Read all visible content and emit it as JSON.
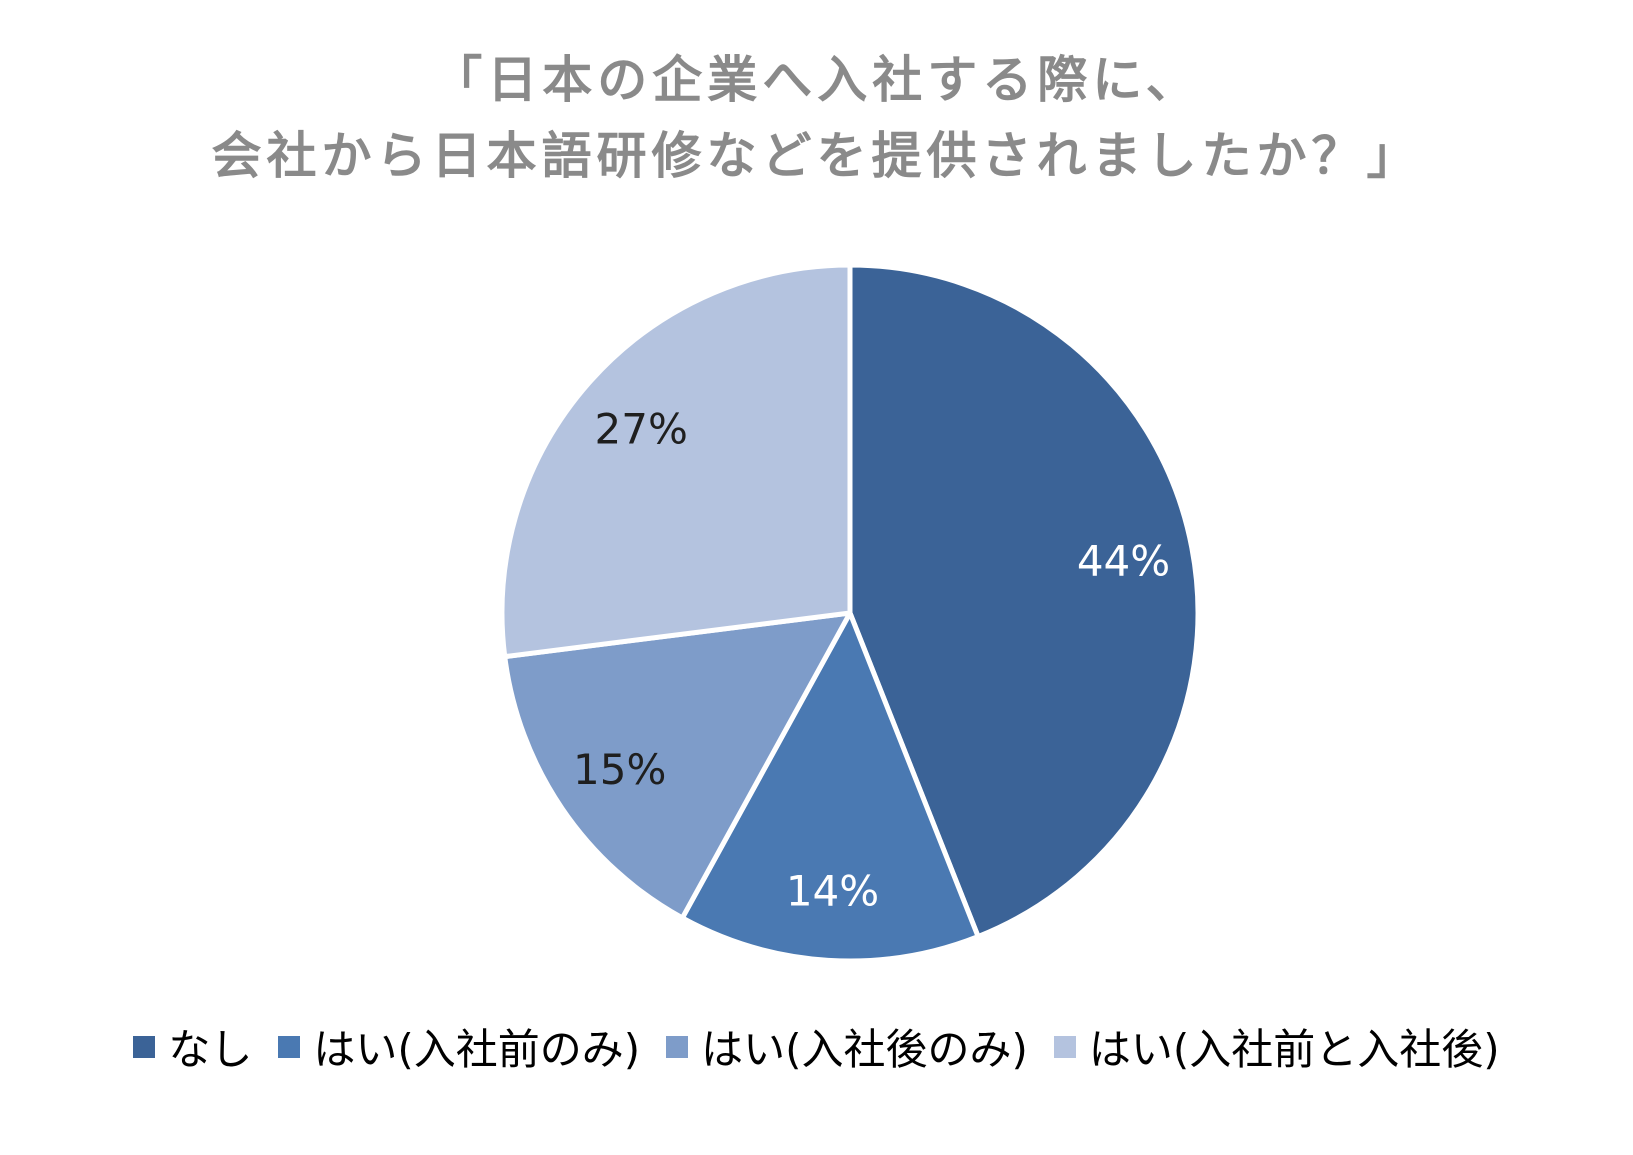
{
  "title": {
    "line1": "「日本の企業へ入社する際に、",
    "line2": "会社から日本語研修などを提供されましたか？」"
  },
  "chart_data": {
    "type": "pie",
    "title": "「日本の企業へ入社する際に、会社から日本語研修などを提供されましたか？」",
    "unit": "%",
    "total": 100,
    "start_angle_deg": 0,
    "direction": "clockwise",
    "legend_position": "bottom",
    "categories": [
      "なし",
      "はい(入社前のみ)",
      "はい(入社後のみ)",
      "はい(入社前と入社後)"
    ],
    "values": [
      44,
      14,
      15,
      27
    ],
    "slices": [
      {
        "label": "なし",
        "value": 44,
        "display": "44%",
        "color": "#3B6397",
        "label_color": "#FFFFFF"
      },
      {
        "label": "はい(入社前のみ)",
        "value": 14,
        "display": "14%",
        "color": "#4A79B2",
        "label_color": "#FFFFFF"
      },
      {
        "label": "はい(入社後のみ)",
        "value": 15,
        "display": "15%",
        "color": "#7E9CC9",
        "label_color": "#1F1F1F"
      },
      {
        "label": "はい(入社前と入社後)",
        "value": 27,
        "display": "27%",
        "color": "#B4C3DF",
        "label_color": "#1F1F1F"
      }
    ]
  },
  "colors": {
    "background": "#FFFFFF",
    "title_text": "#8A8A8A",
    "legend_text": "#000000",
    "slice_border": "#FFFFFF"
  }
}
